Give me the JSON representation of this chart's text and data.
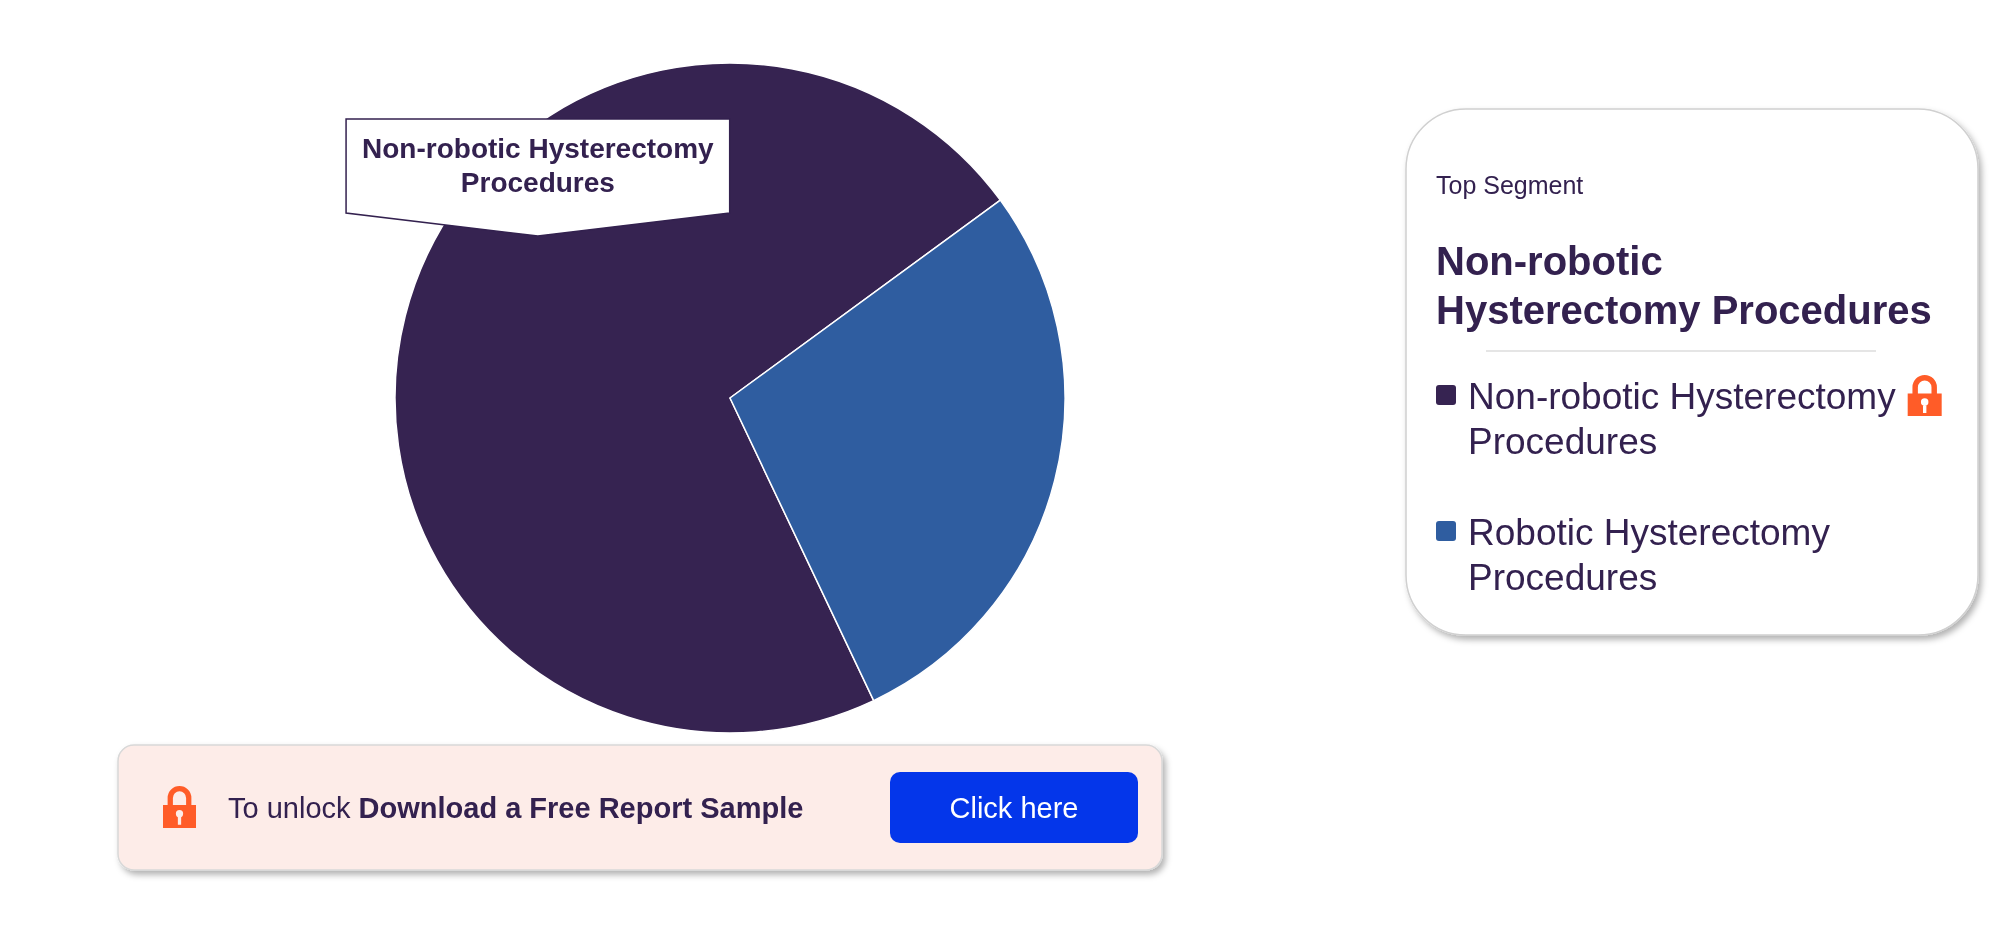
{
  "chart_data": {
    "type": "pie",
    "categories": [
      "Non-robotic Hysterectomy Procedures",
      "Robotic Hysterectomy Procedures"
    ],
    "values": [
      72,
      28
    ],
    "colors": [
      "#362351",
      "#2f5da0"
    ],
    "legend": "right",
    "annotations": [
      "Top Segment",
      "Non-robotic Hysterectomy Procedures",
      "To unlock",
      "Download a Free Report Sample",
      "Click here"
    ]
  }
}
